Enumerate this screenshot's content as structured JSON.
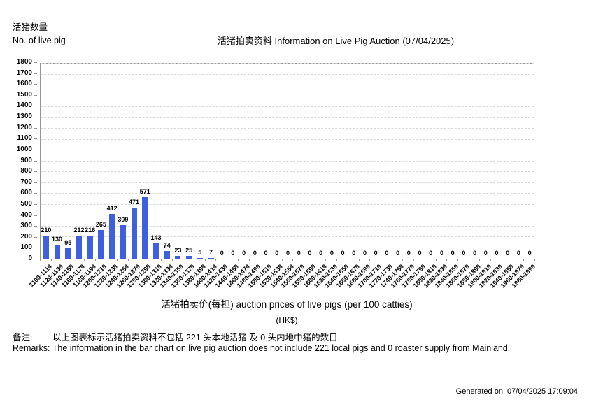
{
  "header": {
    "y_axis_label_zh": "活猪数量",
    "y_axis_label_en": "No. of live pig",
    "title": "活猪拍卖资料 Information on Live Pig Auction (07/04/2025)"
  },
  "x_axis": {
    "label": "活猪拍卖价(每担) auction prices of live pigs (per 100 catties)",
    "unit": "(HK$)"
  },
  "remarks": {
    "zh_label": "备注:",
    "zh_text": "以上图表标示活猪拍卖资料不包括 221 头本地活猪 及 0 头内地中猪的数目.",
    "en": "Remarks: The information in the bar chart on live pig auction does not include 221 local pigs and 0 roaster supply from Mainland."
  },
  "footer": {
    "generated": "Generated on: 07/04/2025 17:09:04"
  },
  "chart_data": {
    "type": "bar",
    "title": "活猪拍卖资料 Information on Live Pig Auction (07/04/2025)",
    "xlabel": "活猪拍卖价(每担) auction prices of live pigs (per 100 catties) (HK$)",
    "ylabel": "活猪数量 No. of live pig",
    "categories": [
      "1100-1119",
      "1120-1139",
      "1140-1159",
      "1160-1179",
      "1180-1199",
      "1200-1219",
      "1220-1239",
      "1240-1259",
      "1260-1279",
      "1280-1299",
      "1300-1319",
      "1320-1339",
      "1340-1359",
      "1360-1379",
      "1380-1399",
      "1400-1419",
      "1420-1439",
      "1440-1459",
      "1460-1479",
      "1480-1499",
      "1500-1519",
      "1520-1539",
      "1540-1559",
      "1560-1579",
      "1580-1599",
      "1600-1619",
      "1620-1639",
      "1640-1659",
      "1660-1679",
      "1680-1699",
      "1700-1719",
      "1720-1739",
      "1740-1759",
      "1760-1779",
      "1780-1799",
      "1800-1819",
      "1820-1839",
      "1840-1859",
      "1860-1879",
      "1880-1899",
      "1900-1919",
      "1920-1939",
      "1940-1959",
      "1960-1979",
      "1980-1999"
    ],
    "values": [
      210,
      130,
      95,
      212,
      216,
      265,
      412,
      309,
      471,
      571,
      143,
      74,
      23,
      25,
      5,
      7,
      0,
      0,
      0,
      0,
      0,
      0,
      0,
      0,
      0,
      0,
      0,
      0,
      0,
      0,
      0,
      0,
      0,
      0,
      0,
      0,
      0,
      0,
      0,
      0,
      0,
      0,
      0,
      0,
      0
    ],
    "ylim": [
      0,
      1800
    ],
    "ytick_step": 100,
    "bar_color": "#3E5FDE",
    "grid": true,
    "gridline_color": "#d9d9d9",
    "data_labels": true,
    "legend_position": "none"
  }
}
